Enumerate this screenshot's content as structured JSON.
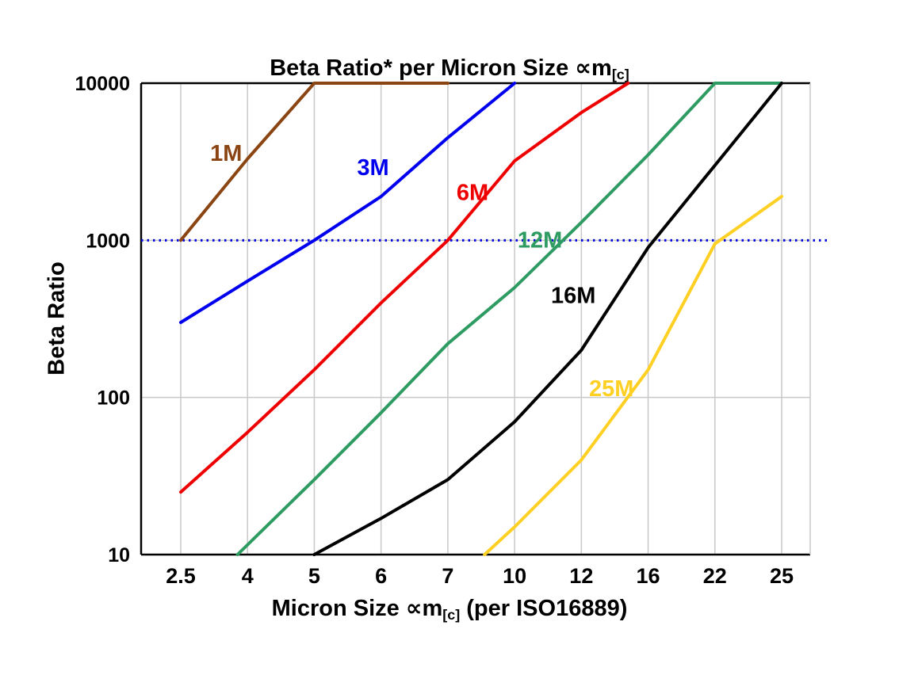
{
  "title": {
    "main": "Beta Ratio* per Micron Size ",
    "symbol": "∝m",
    "sub": "[c]"
  },
  "axes": {
    "y_label": "Beta Ratio",
    "x_label_pre": "Micron Size ",
    "x_symbol": "∝m",
    "x_sub": "[c]",
    "x_label_post": " (per ISO16889)"
  },
  "chart_data": {
    "type": "line",
    "title": "Beta Ratio* per Micron Size ∝m[c]",
    "xlabel": "Micron Size ∝m[c] (per ISO16889)",
    "ylabel": "Beta Ratio",
    "x_categories": [
      "2.5",
      "4",
      "5",
      "6",
      "7",
      "10",
      "12",
      "16",
      "22",
      "25"
    ],
    "y_tick_labels": [
      "10",
      "100",
      "1000",
      "10000"
    ],
    "y_scale": "log",
    "ylim": [
      10,
      10000
    ],
    "y_gridline_values": [
      100,
      1000
    ],
    "grid_on": true,
    "grid_color": "#c9c9c9",
    "border_color": "#000000",
    "reference_line": {
      "value": 1000,
      "color": "#0000dd",
      "style": "dotted"
    },
    "legend_position": "inline-labels",
    "series": [
      {
        "name": "1M",
        "color": "#8B4513",
        "points": [
          [
            0,
            1000
          ],
          [
            1,
            3300
          ],
          [
            2,
            10000
          ],
          [
            4,
            10000
          ]
        ],
        "label_pos": [
          0.68,
          3200
        ]
      },
      {
        "name": "3M",
        "color": "#0000ee",
        "points": [
          [
            0,
            300
          ],
          [
            1,
            550
          ],
          [
            2,
            1000
          ],
          [
            3,
            1900
          ],
          [
            4,
            4500
          ],
          [
            5,
            10000
          ]
        ],
        "label_pos": [
          2.88,
          2600
        ]
      },
      {
        "name": "6M",
        "color": "#ee0000",
        "points": [
          [
            0,
            25
          ],
          [
            1,
            60
          ],
          [
            2,
            150
          ],
          [
            3,
            400
          ],
          [
            4,
            1000
          ],
          [
            5,
            3200
          ],
          [
            6,
            6500
          ],
          [
            6.7,
            10000
          ]
        ],
        "label_pos": [
          4.37,
          1800
        ]
      },
      {
        "name": "12M",
        "color": "#2E9B62",
        "points": [
          [
            0.85,
            10
          ],
          [
            2,
            30
          ],
          [
            3,
            80
          ],
          [
            4,
            220
          ],
          [
            5,
            500
          ],
          [
            6,
            1300
          ],
          [
            7,
            3500
          ],
          [
            8,
            10000
          ],
          [
            9,
            10000
          ]
        ],
        "label_pos": [
          5.38,
          900
        ]
      },
      {
        "name": "16M",
        "color": "#000000",
        "points": [
          [
            2,
            10
          ],
          [
            3,
            17
          ],
          [
            4,
            30
          ],
          [
            5,
            70
          ],
          [
            6,
            200
          ],
          [
            7,
            900
          ],
          [
            8,
            3000
          ],
          [
            9,
            10000
          ]
        ],
        "label_pos": [
          5.88,
          400
        ]
      },
      {
        "name": "25M",
        "color": "#FFD024",
        "points": [
          [
            4.55,
            10
          ],
          [
            5,
            15
          ],
          [
            6,
            40
          ],
          [
            7,
            150
          ],
          [
            8,
            950
          ],
          [
            9,
            1900
          ]
        ],
        "label_pos": [
          6.45,
          102
        ]
      }
    ]
  }
}
